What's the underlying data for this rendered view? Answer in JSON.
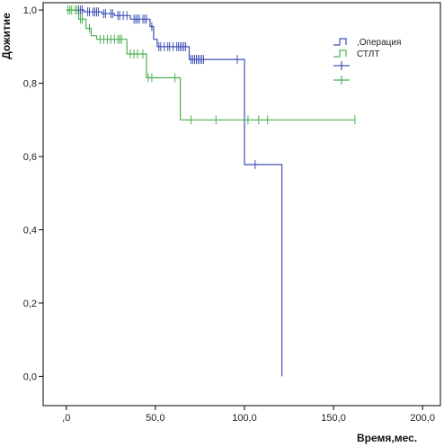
{
  "chart_data": {
    "type": "line",
    "subtype": "kaplan-meier",
    "xlabel": "Время,мес.",
    "ylabel": "Дожитие",
    "xlim": [
      -13,
      210
    ],
    "ylim": [
      -0.08,
      1.02
    ],
    "x_ticks": [
      0,
      50,
      100,
      150,
      200
    ],
    "x_tick_labels": [
      ",0",
      "50,0",
      "100,0",
      "150,0",
      "200,0"
    ],
    "y_ticks": [
      0,
      0.2,
      0.4,
      0.6,
      0.8,
      1.0
    ],
    "y_tick_labels": [
      "0,0",
      "0,2",
      "0,4",
      "0,6",
      "0,8",
      "1,0"
    ],
    "grid": false,
    "legend_position": "top-right",
    "series": [
      {
        "name": ",Операция",
        "color": "#3f51b5",
        "x": [
          0,
          10,
          10,
          20,
          20,
          27,
          27,
          36,
          36,
          47,
          47,
          49,
          49,
          51,
          51,
          69,
          69,
          100,
          100,
          121,
          121
        ],
        "y": [
          1.0,
          1.0,
          0.995,
          0.995,
          0.99,
          0.99,
          0.985,
          0.985,
          0.975,
          0.975,
          0.955,
          0.955,
          0.92,
          0.92,
          0.9,
          0.9,
          0.865,
          0.865,
          0.578,
          0.578,
          0.0
        ]
      },
      {
        "name": "СТЛТ",
        "color": "#4caf50",
        "x": [
          0,
          7,
          7,
          11,
          11,
          14,
          14,
          17,
          17,
          34,
          34,
          45,
          45,
          64,
          64,
          162
        ],
        "y": [
          1.0,
          1.0,
          0.975,
          0.975,
          0.95,
          0.95,
          0.93,
          0.93,
          0.92,
          0.92,
          0.88,
          0.88,
          0.815,
          0.815,
          0.7,
          0.7
        ]
      }
    ],
    "censored_marks": [
      {
        "series": 0,
        "x": [
          7,
          8,
          9,
          12,
          13,
          15,
          16,
          17,
          18,
          21,
          22,
          25,
          26,
          29,
          30,
          32,
          34,
          38,
          39,
          40,
          41,
          43,
          44,
          45,
          48,
          52,
          53,
          55,
          57,
          58,
          60,
          62,
          63,
          64,
          65,
          66,
          67,
          70,
          71,
          72,
          73,
          74,
          75,
          76,
          77,
          96,
          106
        ],
        "y": [
          1.0,
          1.0,
          1.0,
          0.995,
          0.995,
          0.995,
          0.995,
          0.995,
          0.995,
          0.99,
          0.99,
          0.99,
          0.99,
          0.985,
          0.985,
          0.985,
          0.985,
          0.975,
          0.975,
          0.975,
          0.975,
          0.975,
          0.975,
          0.975,
          0.955,
          0.9,
          0.9,
          0.9,
          0.9,
          0.9,
          0.9,
          0.9,
          0.9,
          0.9,
          0.9,
          0.9,
          0.9,
          0.865,
          0.865,
          0.865,
          0.865,
          0.865,
          0.865,
          0.865,
          0.865,
          0.865,
          0.578
        ]
      },
      {
        "series": 1,
        "x": [
          1,
          2,
          3,
          5,
          6,
          8,
          9,
          13,
          19,
          21,
          23,
          25,
          27,
          29,
          30,
          31,
          36,
          38,
          40,
          43,
          46,
          48,
          61,
          70,
          84,
          102,
          108,
          113,
          162
        ],
        "y": [
          1.0,
          1.0,
          1.0,
          1.0,
          1.0,
          0.975,
          0.975,
          0.95,
          0.92,
          0.92,
          0.92,
          0.92,
          0.92,
          0.92,
          0.92,
          0.92,
          0.88,
          0.88,
          0.88,
          0.88,
          0.815,
          0.815,
          0.815,
          0.7,
          0.7,
          0.7,
          0.7,
          0.7,
          0.7
        ]
      }
    ]
  }
}
